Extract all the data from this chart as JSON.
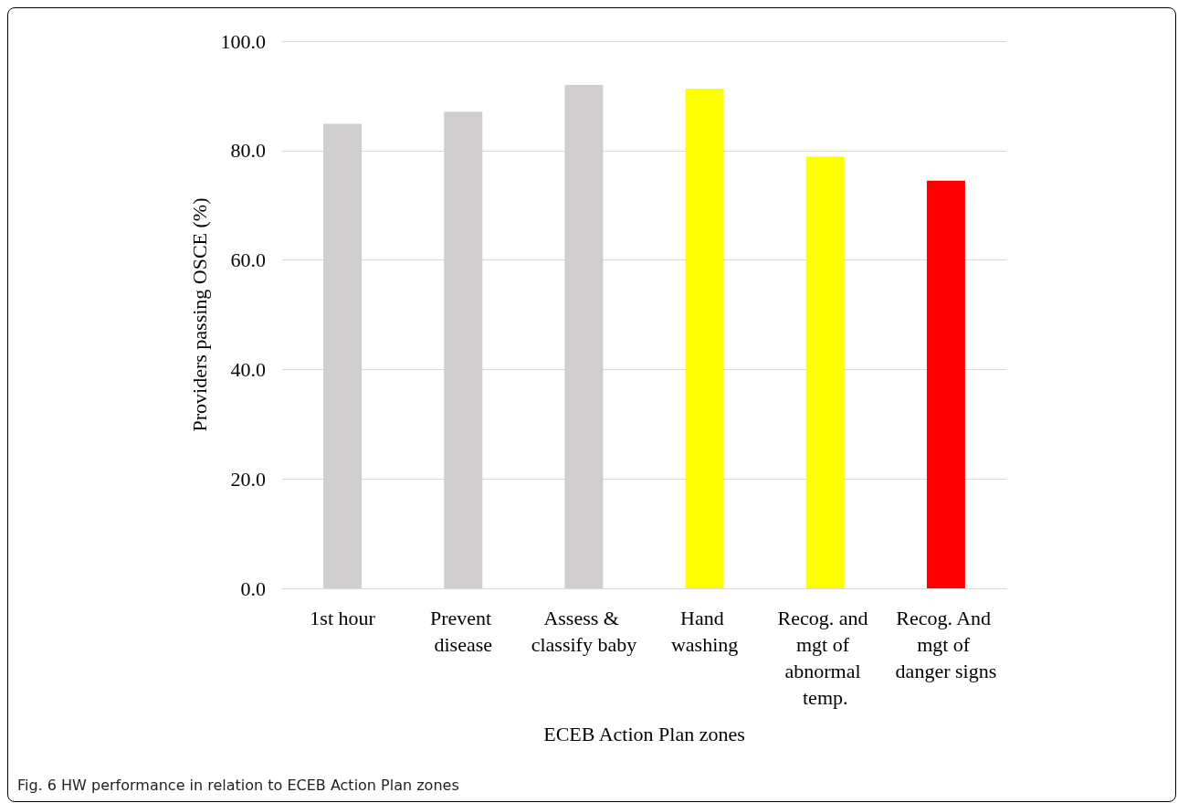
{
  "chart_data": {
    "type": "bar",
    "xlabel": "ECEB Action Plan zones",
    "ylabel": "Providers passing OSCE (%)",
    "categories": [
      "1st hour",
      "Prevent disease",
      "Assess & classify baby",
      "Hand washing",
      "Recog. and mgt of abnormal temp.",
      "Recog. And mgt of danger signs"
    ],
    "values": [
      84.9,
      87.1,
      92.0,
      91.3,
      78.9,
      74.5
    ],
    "colors": [
      "#d0cece",
      "#d0cece",
      "#d0cece",
      "#ffff00",
      "#ffff00",
      "#ff0000"
    ],
    "ylim": [
      0,
      100
    ],
    "yticks": [
      {
        "value": 0,
        "label": "0.0"
      },
      {
        "value": 20,
        "label": "20.0"
      },
      {
        "value": 40,
        "label": "40.0"
      },
      {
        "value": 60,
        "label": "60.0"
      },
      {
        "value": 80,
        "label": "80.0"
      },
      {
        "value": 100,
        "label": "100.0"
      }
    ],
    "grid": "y",
    "annotations": [
      "Fig. 6 HW performance in relation to ECEB Action Plan zones"
    ]
  }
}
